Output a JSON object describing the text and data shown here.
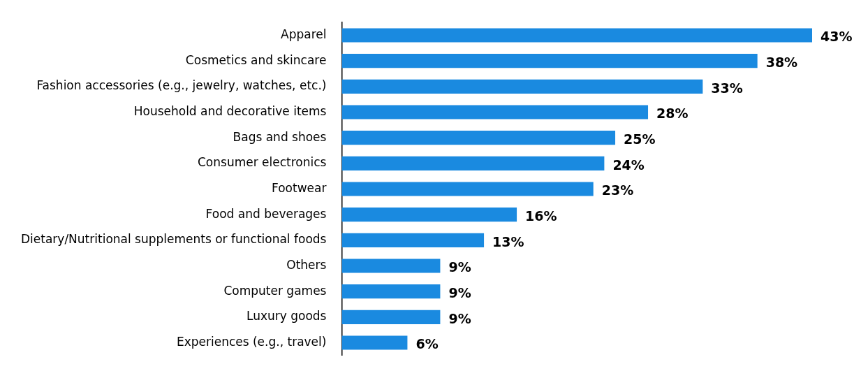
{
  "chart_data": {
    "type": "bar",
    "orientation": "horizontal",
    "categories": [
      "Apparel",
      "Cosmetics and skincare",
      "Fashion accessories (e.g., jewelry, watches, etc.)",
      "Household and decorative items",
      "Bags and shoes",
      "Consumer electronics",
      "Footwear",
      "Food and beverages",
      "Dietary/Nutritional supplements or functional foods",
      "Others",
      "Computer games",
      "Luxury goods",
      "Experiences (e.g., travel)"
    ],
    "values": [
      43,
      38,
      33,
      28,
      25,
      24,
      23,
      16,
      13,
      9,
      9,
      9,
      6
    ],
    "value_labels": [
      "43%",
      "38%",
      "33%",
      "28%",
      "25%",
      "24%",
      "23%",
      "16%",
      "13%",
      "9%",
      "9%",
      "9%",
      "6%"
    ],
    "color": "#1a8ae0",
    "grid": false,
    "legend": false
  }
}
